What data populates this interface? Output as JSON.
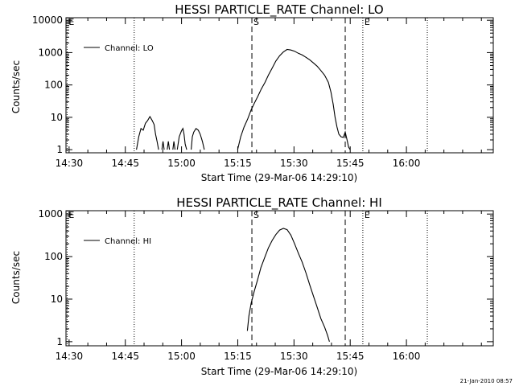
{
  "footer_text": "21-Jan-2010 08:57",
  "chart_data": [
    {
      "type": "line",
      "title": "HESSI PARTICLE_RATE Channel: LO",
      "xlabel": "Start Time (29-Mar-06 14:29:10)",
      "ylabel": "Counts/sec",
      "x_unit": "minutes after 14:29:10",
      "xlim": [
        0,
        114
      ],
      "ylim": [
        0.8,
        12000
      ],
      "yscale": "log",
      "xticks": [
        {
          "t": 0.83,
          "label": "14:30"
        },
        {
          "t": 15.83,
          "label": "14:45"
        },
        {
          "t": 30.83,
          "label": "15:00"
        },
        {
          "t": 45.83,
          "label": "15:15"
        },
        {
          "t": 60.83,
          "label": "15:30"
        },
        {
          "t": 75.83,
          "label": "15:45"
        },
        {
          "t": 90.83,
          "label": "16:00"
        }
      ],
      "yticks": [
        {
          "v": 1,
          "label": "1"
        },
        {
          "v": 10,
          "label": "10"
        },
        {
          "v": 100,
          "label": "100"
        },
        {
          "v": 1000,
          "label": "1000"
        },
        {
          "v": 10000,
          "label": "10000"
        }
      ],
      "legend": {
        "label": "Channel: LO",
        "position": "top-left"
      },
      "markers": [
        {
          "t": 0.3,
          "label": "E",
          "style": "dotted"
        },
        {
          "t": 18.2,
          "label": "",
          "style": "dotted"
        },
        {
          "t": 49.6,
          "label": "S",
          "style": "dashed"
        },
        {
          "t": 74.5,
          "label": "",
          "style": "dashed"
        },
        {
          "t": 79.2,
          "label": "E",
          "style": "dotted"
        },
        {
          "t": 96.4,
          "label": "",
          "style": "dotted"
        }
      ],
      "series": [
        {
          "name": "Channel: LO",
          "segments": [
            [
              [
                18.8,
                1
              ],
              [
                19.4,
                2.5
              ],
              [
                20.0,
                4.5
              ],
              [
                20.6,
                4
              ],
              [
                21.2,
                6.5
              ],
              [
                21.8,
                8
              ],
              [
                22.4,
                10.5
              ],
              [
                23.0,
                8
              ],
              [
                23.5,
                6
              ],
              [
                23.9,
                3
              ],
              [
                24.3,
                1.8
              ],
              [
                24.7,
                1
              ]
            ],
            [
              [
                25.6,
                1
              ],
              [
                25.9,
                1.8
              ],
              [
                26.2,
                1
              ]
            ],
            [
              [
                27.0,
                1
              ],
              [
                27.3,
                1.8
              ],
              [
                27.6,
                1
              ]
            ],
            [
              [
                28.5,
                1
              ],
              [
                28.8,
                1.8
              ],
              [
                29.1,
                1
              ]
            ],
            [
              [
                29.7,
                1
              ],
              [
                30.2,
                2.5
              ],
              [
                30.8,
                3.8
              ],
              [
                31.2,
                4.5
              ],
              [
                31.5,
                3
              ],
              [
                31.8,
                1.5
              ],
              [
                32.2,
                1
              ]
            ],
            [
              [
                33.4,
                1
              ],
              [
                33.7,
                2.5
              ],
              [
                34.1,
                3.5
              ],
              [
                34.7,
                4.5
              ],
              [
                35.3,
                4
              ],
              [
                35.8,
                3
              ],
              [
                36.4,
                1.8
              ],
              [
                36.9,
                1
              ]
            ],
            [
              [
                45.8,
                1
              ],
              [
                46.6,
                2.5
              ],
              [
                47.5,
                5
              ],
              [
                48.5,
                9
              ],
              [
                49.4,
                17
              ],
              [
                50.3,
                28
              ],
              [
                51.2,
                45
              ],
              [
                52.1,
                75
              ],
              [
                53.1,
                120
              ],
              [
                54.0,
                200
              ],
              [
                55.0,
                330
              ],
              [
                56.0,
                550
              ],
              [
                57.0,
                800
              ],
              [
                58.0,
                1050
              ],
              [
                59.0,
                1250
              ],
              [
                60.0,
                1200
              ],
              [
                61.0,
                1100
              ],
              [
                62.0,
                950
              ],
              [
                63.0,
                850
              ],
              [
                64.0,
                720
              ],
              [
                65.0,
                600
              ],
              [
                66.0,
                480
              ],
              [
                67.0,
                380
              ],
              [
                68.0,
                280
              ],
              [
                69.0,
                200
              ],
              [
                70.0,
                120
              ],
              [
                70.7,
                60
              ],
              [
                71.3,
                25
              ],
              [
                71.8,
                10
              ],
              [
                72.3,
                5
              ],
              [
                72.8,
                3
              ],
              [
                73.4,
                2.5
              ],
              [
                74.0,
                2.4
              ],
              [
                74.5,
                3.5
              ],
              [
                75.0,
                2
              ],
              [
                75.4,
                1.2
              ],
              [
                75.8,
                1
              ]
            ]
          ]
        }
      ]
    },
    {
      "type": "line",
      "title": "HESSI PARTICLE_RATE Channel: HI",
      "xlabel": "Start Time (29-Mar-06 14:29:10)",
      "ylabel": "Counts/sec",
      "x_unit": "minutes after 14:29:10",
      "xlim": [
        0,
        114
      ],
      "ylim": [
        0.8,
        1200
      ],
      "yscale": "log",
      "xticks": [
        {
          "t": 0.83,
          "label": "14:30"
        },
        {
          "t": 15.83,
          "label": "14:45"
        },
        {
          "t": 30.83,
          "label": "15:00"
        },
        {
          "t": 45.83,
          "label": "15:15"
        },
        {
          "t": 60.83,
          "label": "15:30"
        },
        {
          "t": 75.83,
          "label": "15:45"
        },
        {
          "t": 90.83,
          "label": "16:00"
        }
      ],
      "yticks": [
        {
          "v": 1,
          "label": "1"
        },
        {
          "v": 10,
          "label": "10"
        },
        {
          "v": 100,
          "label": "100"
        },
        {
          "v": 1000,
          "label": "1000"
        }
      ],
      "legend": {
        "label": "Channel: HI",
        "position": "top-left"
      },
      "markers": [
        {
          "t": 0.3,
          "label": "E",
          "style": "dotted"
        },
        {
          "t": 18.2,
          "label": "",
          "style": "dotted"
        },
        {
          "t": 49.6,
          "label": "S",
          "style": "dashed"
        },
        {
          "t": 74.5,
          "label": "",
          "style": "dashed"
        },
        {
          "t": 79.2,
          "label": "E",
          "style": "dotted"
        },
        {
          "t": 96.4,
          "label": "",
          "style": "dotted"
        }
      ],
      "series": [
        {
          "name": "Channel: HI",
          "segments": [
            [
              [
                48.4,
                1.8
              ],
              [
                48.8,
                4
              ],
              [
                49.4,
                8
              ],
              [
                50.2,
                15
              ],
              [
                51.1,
                28
              ],
              [
                52.0,
                55
              ],
              [
                53.0,
                95
              ],
              [
                54.0,
                160
              ],
              [
                55.0,
                240
              ],
              [
                56.0,
                330
              ],
              [
                57.0,
                420
              ],
              [
                58.0,
                460
              ],
              [
                59.0,
                430
              ],
              [
                60.0,
                320
              ],
              [
                61.0,
                200
              ],
              [
                62.0,
                120
              ],
              [
                63.0,
                75
              ],
              [
                64.0,
                42
              ],
              [
                65.0,
                22
              ],
              [
                66.0,
                12
              ],
              [
                67.0,
                6.5
              ],
              [
                68.0,
                3.5
              ],
              [
                69.0,
                2.2
              ],
              [
                69.8,
                1.4
              ],
              [
                70.3,
                1
              ]
            ]
          ]
        }
      ]
    }
  ]
}
